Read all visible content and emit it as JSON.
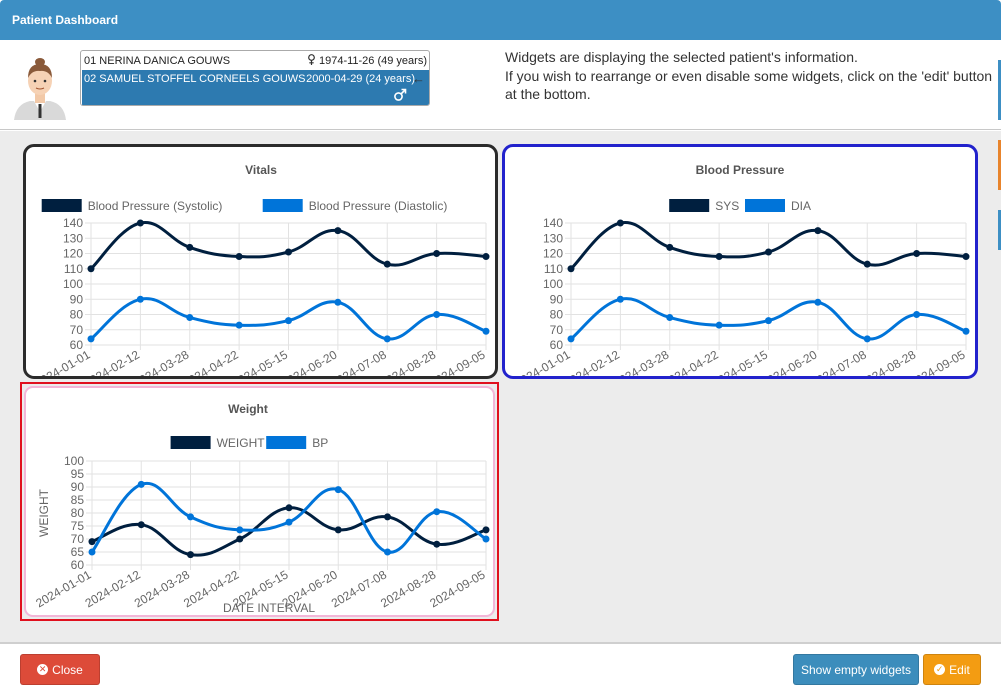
{
  "window": {
    "title": "Patient Dashboard"
  },
  "patients": [
    {
      "label": "01 NERINA DANICA GOUWS",
      "dob": "1974-11-26 (49 years)",
      "gender": "female"
    },
    {
      "label": "02 SAMUEL STOFFEL CORNEELS GOUWS",
      "dob": "2000-04-29 (24 years)",
      "gender": "male"
    }
  ],
  "info": {
    "line1": "Widgets are displaying the selected patient's information.",
    "line2": "If you wish to rearrange or even disable some widgets, click on the 'edit' button at the bottom."
  },
  "colors": {
    "dark": "#001f3f",
    "blue": "#0074d9",
    "close": "#dd4b39",
    "primary": "#3c8dbc",
    "warning": "#f39c12"
  },
  "chart_data": [
    {
      "type": "line",
      "title": "Vitals",
      "categories": [
        "2024-01-01",
        "2024-02-12",
        "2024-03-28",
        "2024-04-22",
        "2024-05-15",
        "2024-06-20",
        "2024-07-08",
        "2024-08-28",
        "2024-09-05"
      ],
      "series": [
        {
          "name": "Blood Pressure (Systolic)",
          "color": "#001f3f",
          "values": [
            110,
            140,
            124,
            118,
            121,
            135,
            113,
            120,
            118
          ]
        },
        {
          "name": "Blood Pressure (Diastolic)",
          "color": "#0074d9",
          "values": [
            64,
            90,
            78,
            73,
            76,
            88,
            64,
            80,
            69
          ]
        }
      ],
      "ylim": [
        60,
        140
      ],
      "ystep": 10,
      "xlabel": "",
      "ylabel": ""
    },
    {
      "type": "line",
      "title": "Blood Pressure",
      "categories": [
        "2024-01-01",
        "2024-02-12",
        "2024-03-28",
        "2024-04-22",
        "2024-05-15",
        "2024-06-20",
        "2024-07-08",
        "2024-08-28",
        "2024-09-05"
      ],
      "series": [
        {
          "name": "SYS",
          "color": "#001f3f",
          "values": [
            110,
            140,
            124,
            118,
            121,
            135,
            113,
            120,
            118
          ]
        },
        {
          "name": "DIA",
          "color": "#0074d9",
          "values": [
            64,
            90,
            78,
            73,
            76,
            88,
            64,
            80,
            69
          ]
        }
      ],
      "ylim": [
        60,
        140
      ],
      "ystep": 10,
      "xlabel": "",
      "ylabel": ""
    },
    {
      "type": "line",
      "title": "Weight",
      "categories": [
        "2024-01-01",
        "2024-02-12",
        "2024-03-28",
        "2024-04-22",
        "2024-05-15",
        "2024-06-20",
        "2024-07-08",
        "2024-08-28",
        "2024-09-05"
      ],
      "series": [
        {
          "name": "WEIGHT",
          "color": "#001f3f",
          "values": [
            69,
            75.5,
            64,
            70,
            82,
            73.5,
            78.5,
            68,
            73.5
          ]
        },
        {
          "name": "BP",
          "color": "#0074d9",
          "values": [
            65,
            91,
            78.5,
            73.5,
            76.5,
            89,
            65,
            80.5,
            70
          ]
        }
      ],
      "ylim": [
        60,
        100
      ],
      "ystep": 5,
      "xlabel": "DATE INTERVAL",
      "ylabel": "WEIGHT"
    }
  ],
  "buttons": {
    "close": "Close",
    "show_empty": "Show empty widgets",
    "edit": "Edit"
  }
}
